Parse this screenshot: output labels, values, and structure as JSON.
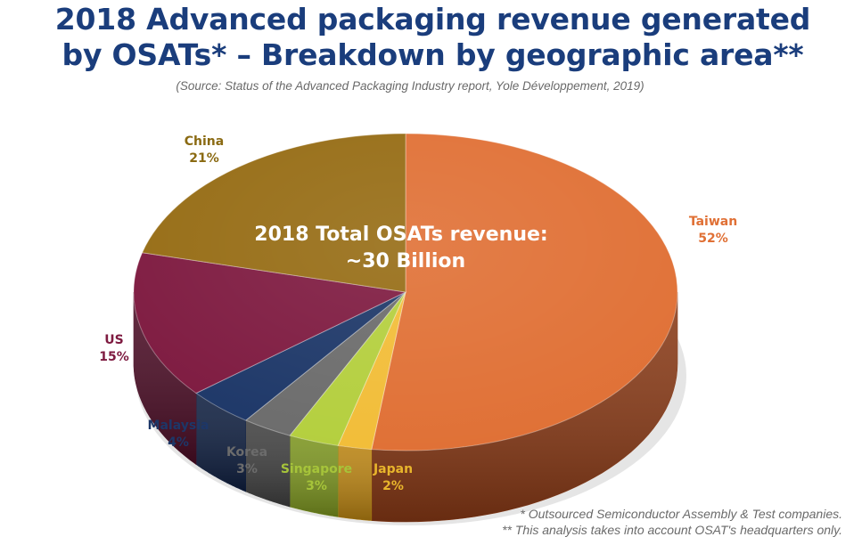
{
  "header": {
    "title_line1": "2018 Advanced packaging revenue generated",
    "title_line2": "by OSATs* – Breakdown by geographic area**",
    "source": "(Source: Status of the Advanced Packaging Industry report, Yole Développement, 2019)"
  },
  "chart_data": {
    "type": "pie",
    "style": "3d",
    "title": "2018 Advanced packaging revenue generated by OSATs* – Breakdown by geographic area**",
    "center_label_line1": "2018 Total OSATs revenue:",
    "center_label_line2": "~30 Billion",
    "unit": "%",
    "slices": [
      {
        "name": "Taiwan",
        "value": 52,
        "label": "52%",
        "color": "#e07035",
        "side": "#8a3a16",
        "label_color": "#e07035"
      },
      {
        "name": "Japan",
        "value": 2,
        "label": "2%",
        "color": "#f2bd38",
        "side": "#b98312",
        "label_color": "#e8b52c"
      },
      {
        "name": "Singapore",
        "value": 3,
        "label": "3%",
        "color": "#b4cf3e",
        "side": "#7c9520",
        "label_color": "#a6c43a"
      },
      {
        "name": "Korea",
        "value": 3,
        "label": "3%",
        "color": "#6c6c6c",
        "side": "#404040",
        "label_color": "#6c6c6c"
      },
      {
        "name": "Malaysia",
        "value": 4,
        "label": "4%",
        "color": "#1d3768",
        "side": "#0f1f40",
        "label_color": "#1d3768"
      },
      {
        "name": "US",
        "value": 15,
        "label": "15%",
        "color": "#7e1a40",
        "side": "#4c0d26",
        "label_color": "#7e1a40"
      },
      {
        "name": "China",
        "value": 21,
        "label": "21%",
        "color": "#966c14",
        "side": "#5a400a",
        "label_color": "#8a6a12"
      }
    ]
  },
  "footnotes": {
    "note1": "* Outsourced Semiconductor Assembly & Test companies.",
    "note2": "** This analysis takes into account OSAT's headquarters only."
  }
}
